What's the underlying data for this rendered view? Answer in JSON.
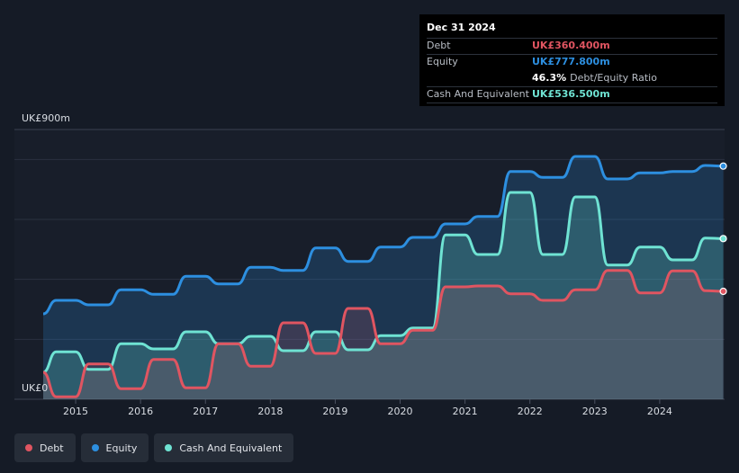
{
  "tooltip": {
    "date": "Dec 31 2024",
    "debt_label": "Debt",
    "debt_value": "UK£360.400m",
    "equity_label": "Equity",
    "equity_value": "UK£777.800m",
    "ratio_value": "46.3%",
    "ratio_label": "Debt/Equity Ratio",
    "cash_label": "Cash And Equivalent",
    "cash_value": "UK£536.500m"
  },
  "legend": [
    {
      "name": "Debt",
      "color": "#e05561"
    },
    {
      "name": "Equity",
      "color": "#2d8fe0"
    },
    {
      "name": "Cash And Equivalent",
      "color": "#6fe3d3"
    }
  ],
  "chart_data": {
    "type": "area",
    "y_top_label": "UK£900m",
    "y_bottom_label": "UK£0",
    "ylim": [
      0,
      900
    ],
    "xlim": [
      2014.5,
      2025.0
    ],
    "x_ticks": [
      "2015",
      "2016",
      "2017",
      "2018",
      "2019",
      "2020",
      "2021",
      "2022",
      "2023",
      "2024"
    ],
    "grid": true,
    "series": [
      {
        "name": "Equity",
        "color": "#2d8fe0",
        "points": [
          [
            2014.5,
            285
          ],
          [
            2014.7,
            330
          ],
          [
            2015.0,
            330
          ],
          [
            2015.2,
            315
          ],
          [
            2015.5,
            315
          ],
          [
            2015.7,
            365
          ],
          [
            2016.0,
            365
          ],
          [
            2016.2,
            350
          ],
          [
            2016.5,
            350
          ],
          [
            2016.7,
            410
          ],
          [
            2017.0,
            410
          ],
          [
            2017.2,
            385
          ],
          [
            2017.5,
            385
          ],
          [
            2017.7,
            440
          ],
          [
            2018.0,
            440
          ],
          [
            2018.2,
            430
          ],
          [
            2018.5,
            430
          ],
          [
            2018.7,
            505
          ],
          [
            2019.0,
            505
          ],
          [
            2019.2,
            460
          ],
          [
            2019.5,
            460
          ],
          [
            2019.7,
            508
          ],
          [
            2020.0,
            508
          ],
          [
            2020.2,
            540
          ],
          [
            2020.5,
            540
          ],
          [
            2020.7,
            585
          ],
          [
            2021.0,
            585
          ],
          [
            2021.2,
            610
          ],
          [
            2021.5,
            610
          ],
          [
            2021.7,
            760
          ],
          [
            2022.0,
            760
          ],
          [
            2022.2,
            740
          ],
          [
            2022.5,
            740
          ],
          [
            2022.7,
            810
          ],
          [
            2023.0,
            810
          ],
          [
            2023.2,
            735
          ],
          [
            2023.5,
            735
          ],
          [
            2023.7,
            755
          ],
          [
            2024.0,
            755
          ],
          [
            2024.2,
            760
          ],
          [
            2024.5,
            760
          ],
          [
            2024.7,
            780
          ],
          [
            2024.98,
            778
          ]
        ]
      },
      {
        "name": "Cash And Equivalent",
        "color": "#6fe3d3",
        "points": [
          [
            2014.5,
            90
          ],
          [
            2014.7,
            158
          ],
          [
            2015.0,
            158
          ],
          [
            2015.2,
            100
          ],
          [
            2015.5,
            100
          ],
          [
            2015.7,
            185
          ],
          [
            2016.0,
            185
          ],
          [
            2016.2,
            168
          ],
          [
            2016.5,
            168
          ],
          [
            2016.7,
            225
          ],
          [
            2017.0,
            225
          ],
          [
            2017.2,
            185
          ],
          [
            2017.5,
            185
          ],
          [
            2017.7,
            210
          ],
          [
            2018.0,
            210
          ],
          [
            2018.2,
            162
          ],
          [
            2018.5,
            162
          ],
          [
            2018.7,
            225
          ],
          [
            2019.0,
            225
          ],
          [
            2019.2,
            165
          ],
          [
            2019.5,
            165
          ],
          [
            2019.7,
            212
          ],
          [
            2020.0,
            212
          ],
          [
            2020.2,
            238
          ],
          [
            2020.5,
            238
          ],
          [
            2020.7,
            548
          ],
          [
            2021.0,
            548
          ],
          [
            2021.2,
            483
          ],
          [
            2021.5,
            483
          ],
          [
            2021.7,
            690
          ],
          [
            2022.0,
            690
          ],
          [
            2022.2,
            483
          ],
          [
            2022.5,
            483
          ],
          [
            2022.7,
            675
          ],
          [
            2023.0,
            675
          ],
          [
            2023.2,
            448
          ],
          [
            2023.5,
            448
          ],
          [
            2023.7,
            508
          ],
          [
            2024.0,
            508
          ],
          [
            2024.2,
            465
          ],
          [
            2024.5,
            465
          ],
          [
            2024.7,
            538
          ],
          [
            2024.98,
            536
          ]
        ]
      },
      {
        "name": "Debt",
        "color": "#e05561",
        "points": [
          [
            2014.5,
            90
          ],
          [
            2014.7,
            8
          ],
          [
            2015.0,
            8
          ],
          [
            2015.2,
            118
          ],
          [
            2015.5,
            118
          ],
          [
            2015.7,
            35
          ],
          [
            2016.0,
            35
          ],
          [
            2016.2,
            133
          ],
          [
            2016.5,
            133
          ],
          [
            2016.7,
            38
          ],
          [
            2017.0,
            38
          ],
          [
            2017.2,
            185
          ],
          [
            2017.5,
            185
          ],
          [
            2017.7,
            110
          ],
          [
            2018.0,
            110
          ],
          [
            2018.2,
            255
          ],
          [
            2018.5,
            255
          ],
          [
            2018.7,
            153
          ],
          [
            2019.0,
            153
          ],
          [
            2019.2,
            303
          ],
          [
            2019.5,
            303
          ],
          [
            2019.7,
            185
          ],
          [
            2020.0,
            185
          ],
          [
            2020.2,
            230
          ],
          [
            2020.5,
            230
          ],
          [
            2020.7,
            375
          ],
          [
            2021.0,
            375
          ],
          [
            2021.2,
            378
          ],
          [
            2021.5,
            378
          ],
          [
            2021.7,
            352
          ],
          [
            2022.0,
            352
          ],
          [
            2022.2,
            330
          ],
          [
            2022.5,
            330
          ],
          [
            2022.7,
            365
          ],
          [
            2023.0,
            365
          ],
          [
            2023.2,
            430
          ],
          [
            2023.5,
            430
          ],
          [
            2023.7,
            355
          ],
          [
            2024.0,
            355
          ],
          [
            2024.2,
            428
          ],
          [
            2024.5,
            428
          ],
          [
            2024.7,
            362
          ],
          [
            2024.98,
            360
          ]
        ]
      }
    ]
  }
}
